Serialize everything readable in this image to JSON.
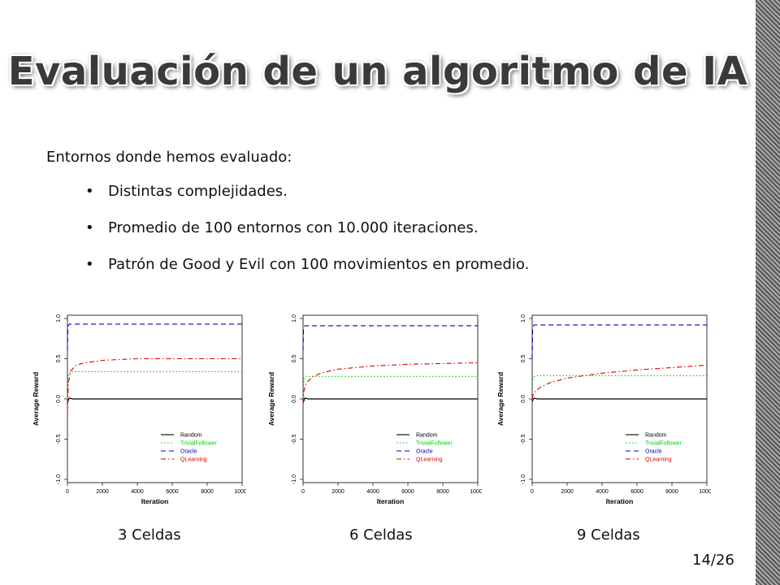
{
  "slide": {
    "title": "Evaluación de un algoritmo de IA",
    "intro": "Entornos donde hemos evaluado:",
    "bullets": [
      "Distintas complejidades.",
      "Promedio de 100 entornos con 10.000 iteraciones.",
      "Patrón de Good y Evil con 100 movimientos en promedio."
    ],
    "bullet_symbol": "•",
    "page": "14/26",
    "captions": [
      "3 Celdas",
      "6 Celdas",
      "9 Celdas"
    ]
  },
  "colors": {
    "title": "#3a3a3a",
    "Random": "#000000",
    "TrivialFollower": "#00cc00",
    "Oracle": "#0000cc",
    "QLearning": "#dd0000"
  },
  "chart_data": [
    {
      "type": "line",
      "caption": "3 Celdas",
      "xlabel": "Iteration",
      "ylabel": "Average Reward",
      "xlim": [
        0,
        10000
      ],
      "ylim": [
        -1.0,
        1.0
      ],
      "xticks": [
        0,
        2000,
        4000,
        6000,
        8000,
        10000
      ],
      "yticks": [
        -1.0,
        -0.5,
        0.0,
        0.5,
        1.0
      ],
      "legend_position": "bottom-right",
      "series": [
        {
          "name": "Random",
          "style": "solid",
          "x": [
            0,
            100,
            300,
            1000,
            10000
          ],
          "y": [
            -0.05,
            0.01,
            0.0,
            0.0,
            0.0
          ]
        },
        {
          "name": "TrivialFollower",
          "style": "dotted",
          "x": [
            0,
            50,
            200,
            1000,
            10000
          ],
          "y": [
            0.0,
            0.3,
            0.34,
            0.34,
            0.34
          ]
        },
        {
          "name": "Oracle",
          "style": "dashed",
          "x": [
            0,
            30,
            100,
            10000
          ],
          "y": [
            0.6,
            0.9,
            0.93,
            0.93
          ]
        },
        {
          "name": "QLearning",
          "style": "dashdot",
          "x": [
            0,
            50,
            200,
            500,
            1000,
            2000,
            4000,
            6000,
            8000,
            10000
          ],
          "y": [
            -0.2,
            0.2,
            0.35,
            0.42,
            0.45,
            0.48,
            0.5,
            0.5,
            0.5,
            0.5
          ]
        }
      ]
    },
    {
      "type": "line",
      "caption": "6 Celdas",
      "xlabel": "Iteration",
      "ylabel": "Average Reward",
      "xlim": [
        0,
        10000
      ],
      "ylim": [
        -1.0,
        1.0
      ],
      "xticks": [
        0,
        2000,
        4000,
        6000,
        8000,
        10000
      ],
      "yticks": [
        -1.0,
        -0.5,
        0.0,
        0.5,
        1.0
      ],
      "legend_position": "bottom-right",
      "series": [
        {
          "name": "Random",
          "style": "solid",
          "x": [
            0,
            100,
            300,
            1000,
            10000
          ],
          "y": [
            -0.05,
            0.01,
            0.0,
            0.0,
            0.0
          ]
        },
        {
          "name": "TrivialFollower",
          "style": "dotted",
          "x": [
            0,
            50,
            200,
            1000,
            10000
          ],
          "y": [
            0.0,
            0.25,
            0.28,
            0.28,
            0.28
          ]
        },
        {
          "name": "Oracle",
          "style": "dashed",
          "x": [
            0,
            30,
            100,
            10000
          ],
          "y": [
            0.6,
            0.88,
            0.91,
            0.91
          ]
        },
        {
          "name": "QLearning",
          "style": "dashdot",
          "x": [
            0,
            50,
            200,
            500,
            1000,
            2000,
            4000,
            6000,
            8000,
            10000
          ],
          "y": [
            -0.05,
            0.1,
            0.2,
            0.27,
            0.32,
            0.37,
            0.41,
            0.43,
            0.44,
            0.45
          ]
        }
      ]
    },
    {
      "type": "line",
      "caption": "9 Celdas",
      "xlabel": "Iteration",
      "ylabel": "Average Reward",
      "xlim": [
        0,
        10000
      ],
      "ylim": [
        -1.0,
        1.0
      ],
      "xticks": [
        0,
        2000,
        4000,
        6000,
        8000,
        10000
      ],
      "yticks": [
        -1.0,
        -0.5,
        0.0,
        0.5,
        1.0
      ],
      "legend_position": "bottom-right",
      "series": [
        {
          "name": "Random",
          "style": "solid",
          "x": [
            0,
            100,
            300,
            1000,
            10000
          ],
          "y": [
            -0.03,
            0.01,
            0.0,
            0.0,
            0.0
          ]
        },
        {
          "name": "TrivialFollower",
          "style": "dotted",
          "x": [
            0,
            50,
            200,
            1000,
            10000
          ],
          "y": [
            0.2,
            0.27,
            0.29,
            0.29,
            0.29
          ]
        },
        {
          "name": "Oracle",
          "style": "dashed",
          "x": [
            0,
            30,
            100,
            10000
          ],
          "y": [
            0.5,
            0.88,
            0.92,
            0.92
          ]
        },
        {
          "name": "QLearning",
          "style": "dashdot",
          "x": [
            0,
            50,
            200,
            500,
            1000,
            2000,
            4000,
            6000,
            8000,
            10000
          ],
          "y": [
            0.0,
            0.05,
            0.1,
            0.15,
            0.2,
            0.26,
            0.32,
            0.36,
            0.39,
            0.42
          ]
        }
      ]
    }
  ]
}
